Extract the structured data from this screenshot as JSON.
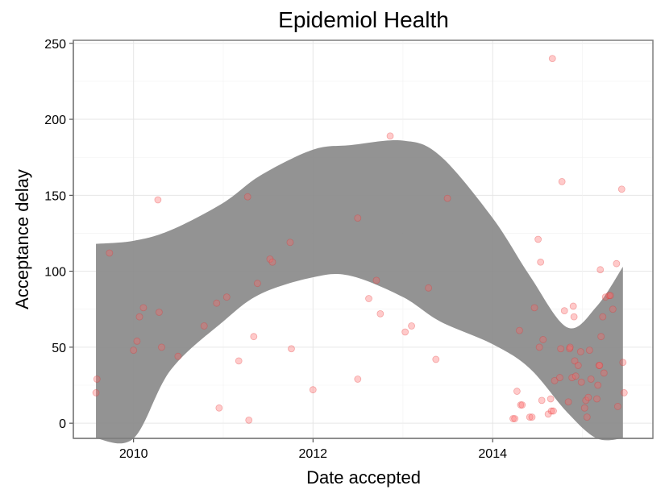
{
  "chart_data": {
    "type": "scatter",
    "title": "Epidemiol Health",
    "xlabel": "Date accepted",
    "ylabel": "Acceptance delay",
    "xlim": [
      "2009-05-01",
      "2015-10-15"
    ],
    "ylim": [
      -10,
      252
    ],
    "x_ticks": [
      "2010-01-01",
      "2012-01-01",
      "2014-01-01"
    ],
    "x_tick_labels": [
      "2010",
      "2012",
      "2014"
    ],
    "y_ticks": [
      0,
      50,
      100,
      150,
      200,
      250
    ],
    "y_tick_labels": [
      "0",
      "50",
      "100",
      "150",
      "200",
      "250"
    ],
    "grid": true,
    "point_color": "#ff6666",
    "band_color": "#8a8a8a",
    "series": [
      {
        "points": [
          {
            "x": "2009-08-01",
            "y": 20
          },
          {
            "x": "2009-08-05",
            "y": 29
          },
          {
            "x": "2009-09-25",
            "y": 112
          },
          {
            "x": "2010-01-01",
            "y": 48
          },
          {
            "x": "2010-01-15",
            "y": 54
          },
          {
            "x": "2010-01-25",
            "y": 70
          },
          {
            "x": "2010-02-10",
            "y": 76
          },
          {
            "x": "2010-04-10",
            "y": 147
          },
          {
            "x": "2010-04-15",
            "y": 73
          },
          {
            "x": "2010-04-25",
            "y": 50
          },
          {
            "x": "2010-07-01",
            "y": 44
          },
          {
            "x": "2010-10-15",
            "y": 64
          },
          {
            "x": "2010-12-05",
            "y": 79
          },
          {
            "x": "2010-12-15",
            "y": 10
          },
          {
            "x": "2011-01-15",
            "y": 83
          },
          {
            "x": "2011-03-05",
            "y": 41
          },
          {
            "x": "2011-04-10",
            "y": 149
          },
          {
            "x": "2011-04-15",
            "y": 2
          },
          {
            "x": "2011-05-05",
            "y": 57
          },
          {
            "x": "2011-05-20",
            "y": 92
          },
          {
            "x": "2011-07-10",
            "y": 108
          },
          {
            "x": "2011-07-20",
            "y": 106
          },
          {
            "x": "2011-09-30",
            "y": 119
          },
          {
            "x": "2011-10-05",
            "y": 49
          },
          {
            "x": "2012-01-01",
            "y": 22
          },
          {
            "x": "2012-07-01",
            "y": 135
          },
          {
            "x": "2012-07-01",
            "y": 29
          },
          {
            "x": "2012-08-15",
            "y": 82
          },
          {
            "x": "2012-09-15",
            "y": 94
          },
          {
            "x": "2012-10-01",
            "y": 72
          },
          {
            "x": "2012-11-10",
            "y": 189
          },
          {
            "x": "2013-01-10",
            "y": 60
          },
          {
            "x": "2013-02-05",
            "y": 64
          },
          {
            "x": "2013-04-15",
            "y": 89
          },
          {
            "x": "2013-05-15",
            "y": 42
          },
          {
            "x": "2013-07-01",
            "y": 148
          },
          {
            "x": "2014-03-25",
            "y": 3
          },
          {
            "x": "2014-04-01",
            "y": 3
          },
          {
            "x": "2014-04-10",
            "y": 21
          },
          {
            "x": "2014-04-20",
            "y": 61
          },
          {
            "x": "2014-04-25",
            "y": 12
          },
          {
            "x": "2014-05-01",
            "y": 12
          },
          {
            "x": "2014-06-01",
            "y": 4
          },
          {
            "x": "2014-06-10",
            "y": 4
          },
          {
            "x": "2014-06-20",
            "y": 76
          },
          {
            "x": "2014-07-05",
            "y": 121
          },
          {
            "x": "2014-07-10",
            "y": 50
          },
          {
            "x": "2014-07-15",
            "y": 106
          },
          {
            "x": "2014-07-20",
            "y": 15
          },
          {
            "x": "2014-07-25",
            "y": 55
          },
          {
            "x": "2014-08-15",
            "y": 6
          },
          {
            "x": "2014-08-25",
            "y": 16
          },
          {
            "x": "2014-08-28",
            "y": 8
          },
          {
            "x": "2014-09-01",
            "y": 240
          },
          {
            "x": "2014-09-05",
            "y": 8
          },
          {
            "x": "2014-09-10",
            "y": 28
          },
          {
            "x": "2014-10-01",
            "y": 30
          },
          {
            "x": "2014-10-05",
            "y": 49
          },
          {
            "x": "2014-10-10",
            "y": 159
          },
          {
            "x": "2014-10-20",
            "y": 74
          },
          {
            "x": "2014-11-05",
            "y": 14
          },
          {
            "x": "2014-11-10",
            "y": 49
          },
          {
            "x": "2014-11-12",
            "y": 50
          },
          {
            "x": "2014-11-20",
            "y": 30
          },
          {
            "x": "2014-11-25",
            "y": 77
          },
          {
            "x": "2014-11-28",
            "y": 70
          },
          {
            "x": "2014-12-01",
            "y": 41
          },
          {
            "x": "2014-12-05",
            "y": 31
          },
          {
            "x": "2014-12-15",
            "y": 38
          },
          {
            "x": "2014-12-25",
            "y": 47
          },
          {
            "x": "2014-12-28",
            "y": 27
          },
          {
            "x": "2015-01-10",
            "y": 10
          },
          {
            "x": "2015-01-15",
            "y": 15
          },
          {
            "x": "2015-01-20",
            "y": 4
          },
          {
            "x": "2015-01-25",
            "y": 17
          },
          {
            "x": "2015-01-30",
            "y": 48
          },
          {
            "x": "2015-02-05",
            "y": 29
          },
          {
            "x": "2015-03-01",
            "y": 16
          },
          {
            "x": "2015-03-05",
            "y": 25
          },
          {
            "x": "2015-03-10",
            "y": 38
          },
          {
            "x": "2015-03-12",
            "y": 38
          },
          {
            "x": "2015-03-15",
            "y": 101
          },
          {
            "x": "2015-03-18",
            "y": 57
          },
          {
            "x": "2015-03-25",
            "y": 70
          },
          {
            "x": "2015-03-30",
            "y": 33
          },
          {
            "x": "2015-04-05",
            "y": 83
          },
          {
            "x": "2015-04-20",
            "y": 84
          },
          {
            "x": "2015-04-25",
            "y": 84
          },
          {
            "x": "2015-05-05",
            "y": 75
          },
          {
            "x": "2015-05-20",
            "y": 105
          },
          {
            "x": "2015-05-25",
            "y": 11
          },
          {
            "x": "2015-06-10",
            "y": 154
          },
          {
            "x": "2015-06-15",
            "y": 40
          },
          {
            "x": "2015-06-20",
            "y": 20
          }
        ]
      }
    ],
    "smooth_band": {
      "x": [
        "2009-08-01",
        "2010-01-01",
        "2010-06-01",
        "2011-01-01",
        "2011-06-01",
        "2012-01-01",
        "2012-06-01",
        "2013-01-01",
        "2013-06-01",
        "2014-01-01",
        "2014-06-01",
        "2014-11-01",
        "2015-03-01",
        "2015-06-15"
      ],
      "upper": [
        118,
        120,
        127,
        145,
        163,
        180,
        183,
        186,
        176,
        135,
        97,
        63,
        77,
        103
      ],
      "lower": [
        -10,
        -10,
        35,
        67,
        85,
        96,
        97,
        83,
        67,
        52,
        36,
        7,
        -10,
        -10
      ]
    }
  }
}
